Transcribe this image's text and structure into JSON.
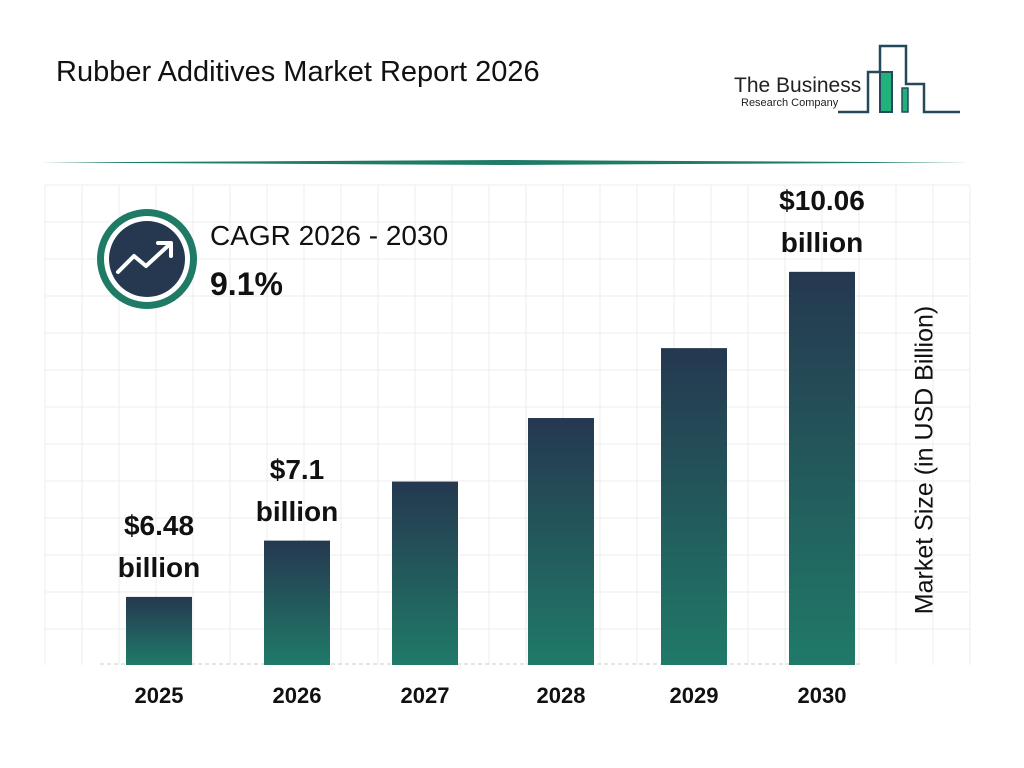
{
  "header": {
    "title": "Rubber Additives Market Report 2026"
  },
  "logo": {
    "line1": "The Business",
    "line2": "Research Company"
  },
  "cagr": {
    "label": "CAGR 2026 - 2030",
    "value": "9.1%",
    "icon": "trend-up-icon"
  },
  "colors": {
    "bar_top": "#253850",
    "bar_bottom": "#207a68",
    "accent": "#1f7a66",
    "logo_green": "#22b07d"
  },
  "chart_data": {
    "type": "bar",
    "title": "",
    "xlabel": "",
    "ylabel": "Market Size (in USD Billion)",
    "categories": [
      "2025",
      "2026",
      "2027",
      "2028",
      "2029",
      "2030"
    ],
    "values": [
      6.48,
      7.1,
      7.75,
      8.45,
      9.22,
      10.06
    ],
    "data_labels": [
      {
        "index": 0,
        "line1": "$6.48",
        "line2": "billion"
      },
      {
        "index": 1,
        "line1": "$7.1",
        "line2": "billion"
      },
      {
        "index": 5,
        "line1": "$10.06",
        "line2": "billion"
      }
    ],
    "grid": true
  }
}
